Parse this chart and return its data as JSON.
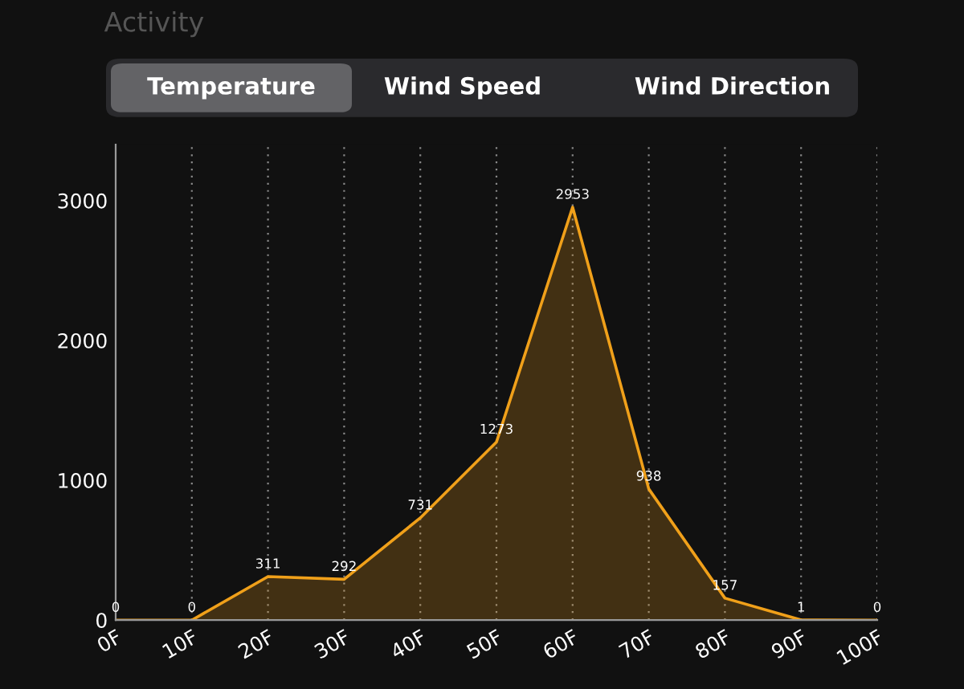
{
  "chart_data": {
    "type": "area",
    "title": "Activity",
    "annotations": [
      "Temperature",
      "Wind Speed",
      "Wind Direction"
    ],
    "categories": [
      "0F",
      "10F",
      "20F",
      "30F",
      "40F",
      "50F",
      "60F",
      "70F",
      "80F",
      "90F",
      "100F"
    ],
    "series": [
      {
        "color": "#f0a01a",
        "values": [
          0,
          0,
          311,
          292,
          731,
          1273,
          2953,
          938,
          157,
          1,
          0
        ]
      }
    ],
    "ylim": [
      0,
      3400
    ],
    "yticks": [
      0,
      1000,
      2000,
      3000
    ],
    "grid": "x",
    "data_labels": true,
    "marker": "none",
    "line_style": "solid",
    "legend": false
  }
}
